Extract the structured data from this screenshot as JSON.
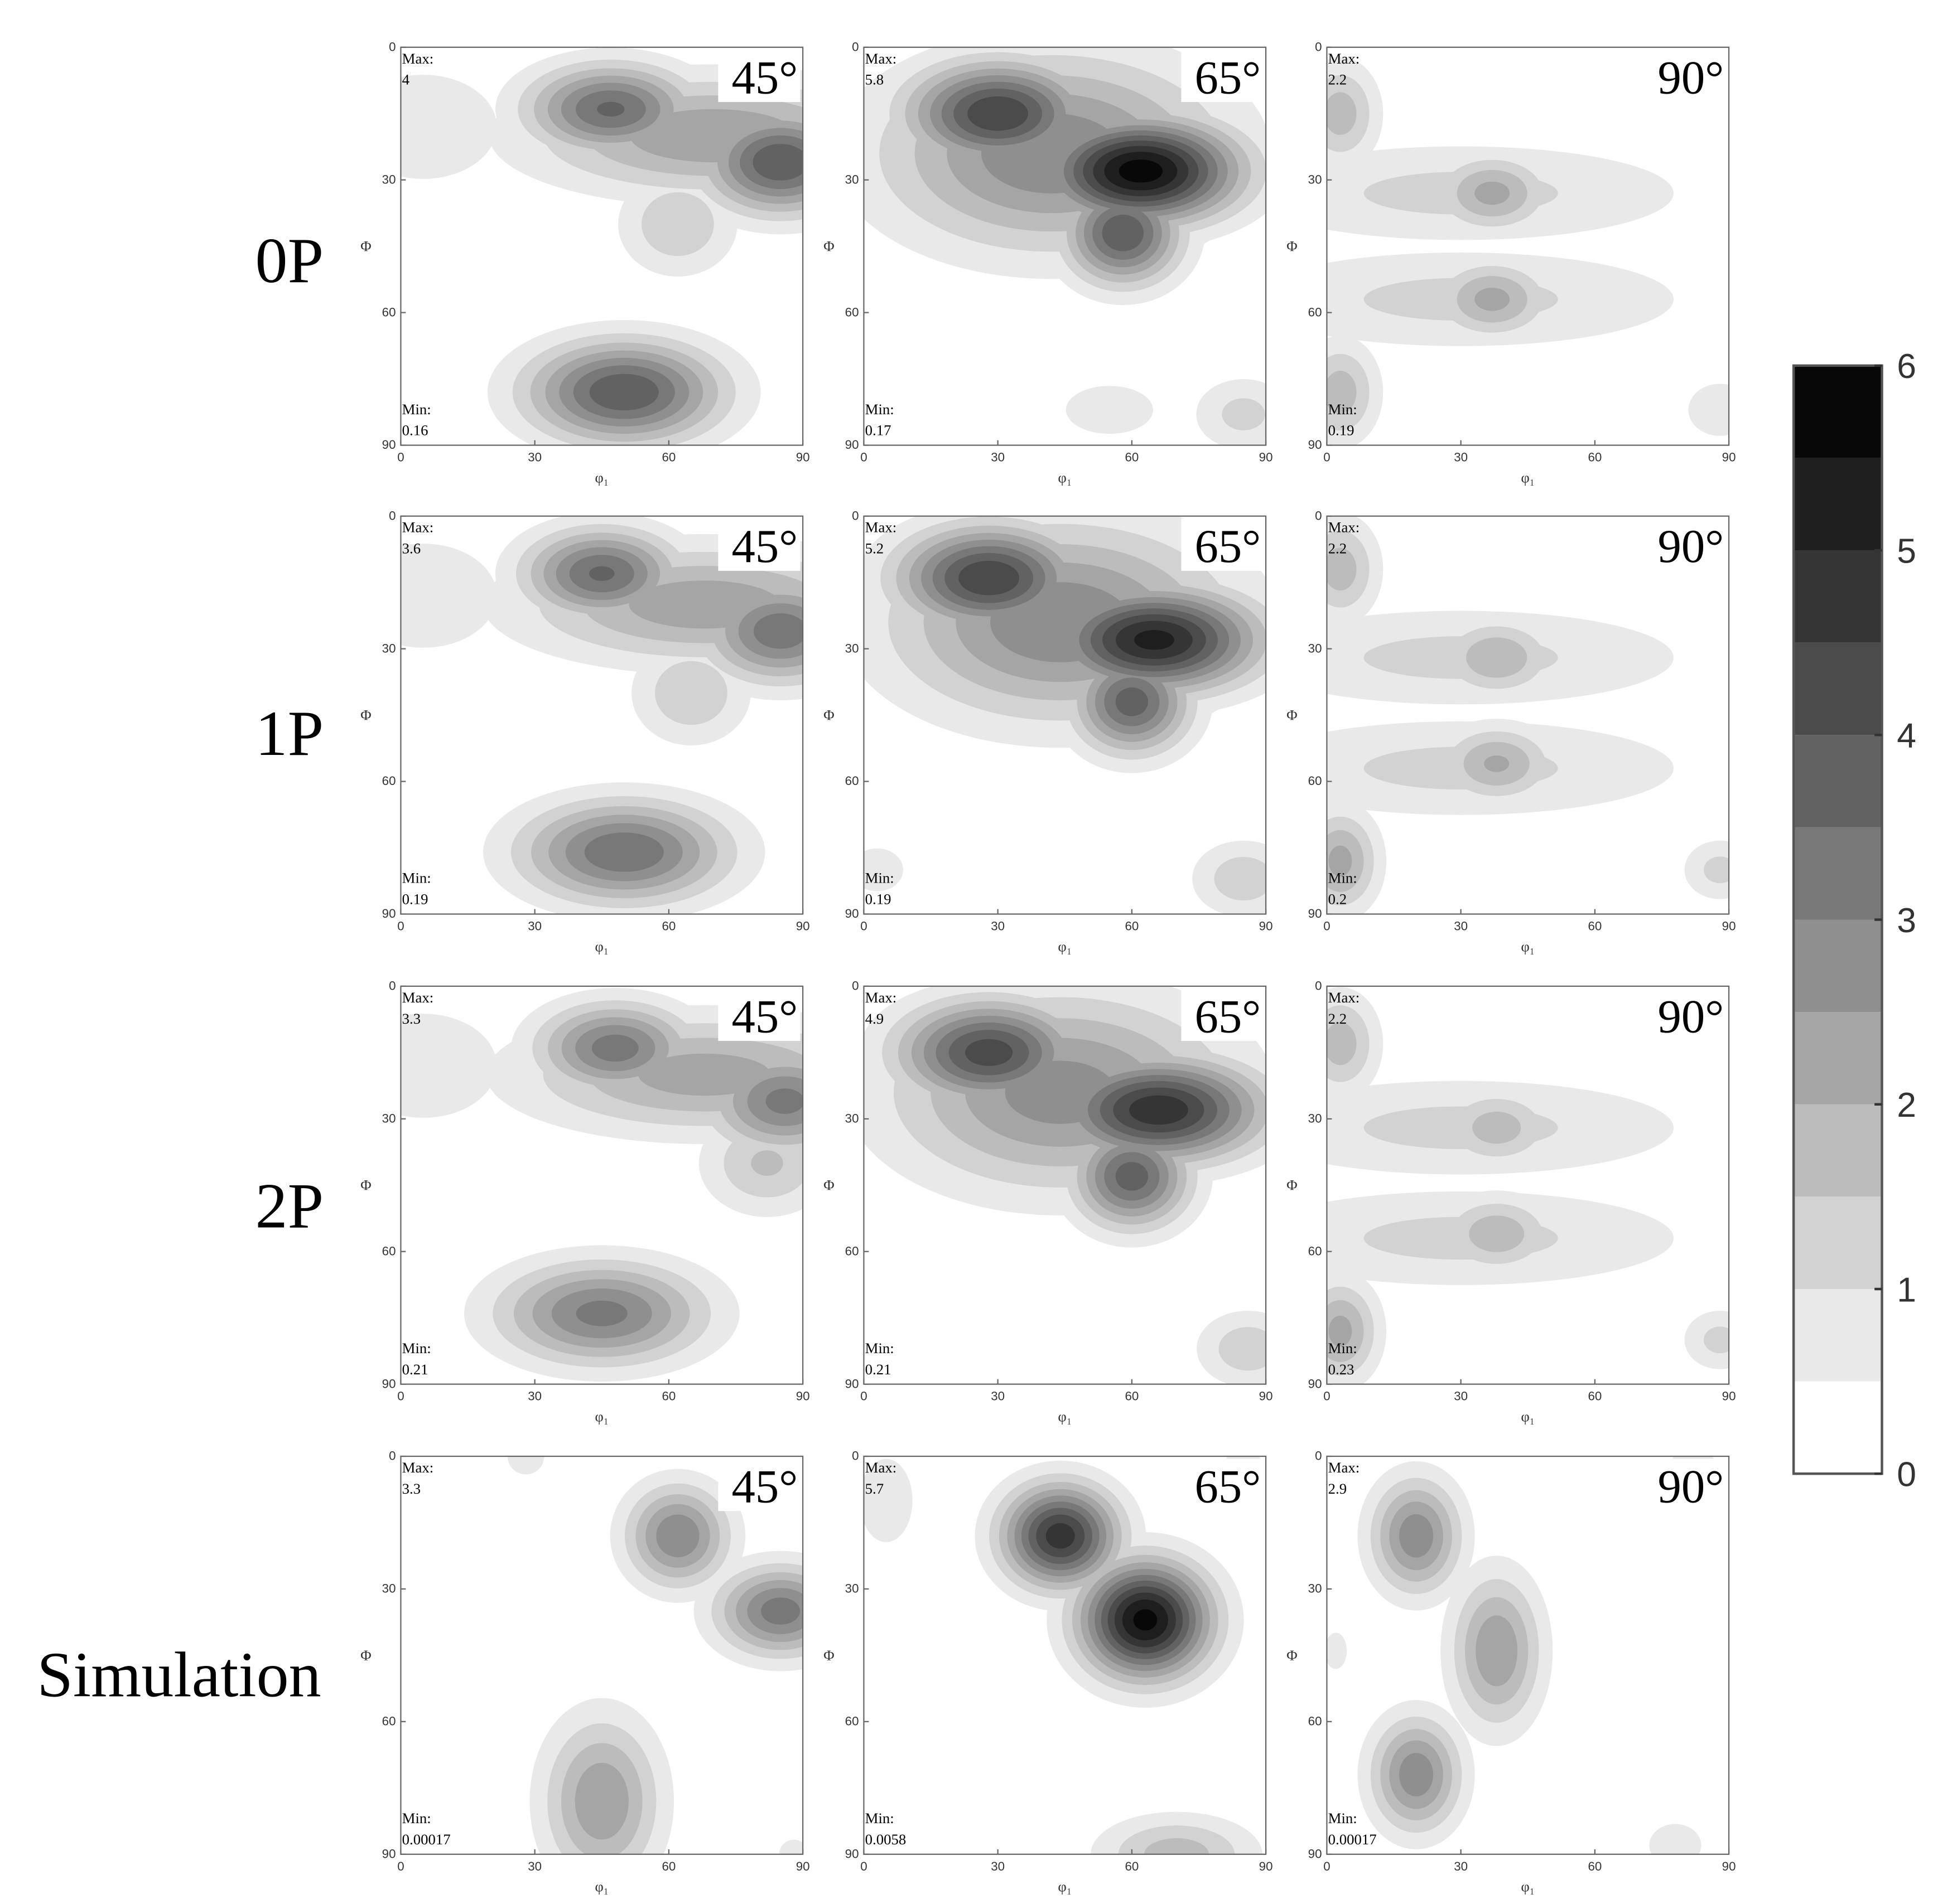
{
  "row_labels": [
    "0P",
    "1P",
    "2P",
    "Simulation"
  ],
  "colorbar": {
    "lim": [
      0,
      6
    ],
    "ticks": [
      0,
      1,
      2,
      3,
      4,
      5,
      6
    ],
    "levels": [
      0,
      0.5,
      1,
      1.5,
      2,
      2.5,
      3,
      3.5,
      4,
      4.5,
      5,
      5.5,
      6
    ]
  },
  "chart_data": [
    {
      "type": "contour",
      "title": "45°",
      "max_label": "Max:",
      "max": 4,
      "min_label": "Min:",
      "min": 0.16,
      "xlabel": "φ₁",
      "ylabel": "Φ",
      "xlim": [
        0,
        90
      ],
      "ylim": [
        0,
        90
      ],
      "xticks": [
        0,
        30,
        60,
        90
      ],
      "yticks": [
        0,
        30,
        60,
        90
      ],
      "peaks": [
        {
          "phi1": 70,
          "Phi": 20,
          "value": 2.5,
          "sx": 28,
          "sy": 9
        },
        {
          "phi1": 47,
          "Phi": 14,
          "value": 3.6,
          "sx": 13,
          "sy": 7
        },
        {
          "phi1": 85,
          "Phi": 26,
          "value": 4,
          "sx": 12,
          "sy": 8
        },
        {
          "phi1": 62,
          "Phi": 40,
          "value": 1.5,
          "sx": 9,
          "sy": 8
        },
        {
          "phi1": 5,
          "Phi": 18,
          "value": 1,
          "sx": 14,
          "sy": 10
        },
        {
          "phi1": 50,
          "Phi": 78,
          "value": 4,
          "sx": 15,
          "sy": 8
        }
      ]
    },
    {
      "type": "contour",
      "title": "65°",
      "max_label": "Max:",
      "max": 5.8,
      "min_label": "Min:",
      "min": 0.17,
      "xlabel": "φ₁",
      "ylabel": "Φ",
      "xlim": [
        0,
        90
      ],
      "ylim": [
        0,
        90
      ],
      "xticks": [
        0,
        30,
        60,
        90
      ],
      "yticks": [
        0,
        30,
        60,
        90
      ],
      "peaks": [
        {
          "phi1": 42,
          "Phi": 24,
          "value": 3,
          "sx": 26,
          "sy": 15
        },
        {
          "phi1": 30,
          "Phi": 15,
          "value": 4.5,
          "sx": 14,
          "sy": 8
        },
        {
          "phi1": 62,
          "Phi": 28,
          "value": 5.8,
          "sx": 15,
          "sy": 8
        },
        {
          "phi1": 58,
          "Phi": 42,
          "value": 4,
          "sx": 9,
          "sy": 8
        },
        {
          "phi1": 85,
          "Phi": 83,
          "value": 1.2,
          "sx": 8,
          "sy": 6
        },
        {
          "phi1": 55,
          "Phi": 82,
          "value": 0.9,
          "sx": 9,
          "sy": 5
        }
      ]
    },
    {
      "type": "contour",
      "title": "90°",
      "max_label": "Max:",
      "max": 2.2,
      "min_label": "Min:",
      "min": 0.19,
      "xlabel": "φ₁",
      "ylabel": "Φ",
      "xlim": [
        0,
        90
      ],
      "ylim": [
        0,
        90
      ],
      "xticks": [
        0,
        30,
        60,
        90
      ],
      "yticks": [
        0,
        30,
        60,
        90
      ],
      "peaks": [
        {
          "phi1": 30,
          "Phi": 33,
          "value": 1.2,
          "sx": 36,
          "sy": 8
        },
        {
          "phi1": 30,
          "Phi": 57,
          "value": 1.2,
          "sx": 36,
          "sy": 8
        },
        {
          "phi1": 3,
          "Phi": 15,
          "value": 1.8,
          "sx": 6,
          "sy": 8
        },
        {
          "phi1": 37,
          "Phi": 33,
          "value": 2.2,
          "sx": 9,
          "sy": 6
        },
        {
          "phi1": 37,
          "Phi": 57,
          "value": 2.2,
          "sx": 9,
          "sy": 6
        },
        {
          "phi1": 3,
          "Phi": 78,
          "value": 1.8,
          "sx": 6,
          "sy": 8
        },
        {
          "phi1": 88,
          "Phi": 82,
          "value": 1,
          "sx": 6,
          "sy": 5
        }
      ]
    },
    {
      "type": "contour",
      "title": "45°",
      "max_label": "Max:",
      "max": 3.6,
      "min_label": "Min:",
      "min": 0.19,
      "xlabel": "φ₁",
      "ylabel": "Φ",
      "xlim": [
        0,
        90
      ],
      "ylim": [
        0,
        90
      ],
      "xticks": [
        0,
        30,
        60,
        90
      ],
      "yticks": [
        0,
        30,
        60,
        90
      ],
      "peaks": [
        {
          "phi1": 68,
          "Phi": 20,
          "value": 2.4,
          "sx": 28,
          "sy": 9
        },
        {
          "phi1": 45,
          "Phi": 13,
          "value": 3.6,
          "sx": 12,
          "sy": 7
        },
        {
          "phi1": 85,
          "Phi": 26,
          "value": 3.4,
          "sx": 12,
          "sy": 8
        },
        {
          "phi1": 65,
          "Phi": 40,
          "value": 1.5,
          "sx": 9,
          "sy": 8
        },
        {
          "phi1": 5,
          "Phi": 18,
          "value": 1,
          "sx": 14,
          "sy": 10
        },
        {
          "phi1": 50,
          "Phi": 76,
          "value": 3.5,
          "sx": 16,
          "sy": 8
        }
      ]
    },
    {
      "type": "contour",
      "title": "65°",
      "max_label": "Max:",
      "max": 5.2,
      "min_label": "Min:",
      "min": 0.19,
      "xlabel": "φ₁",
      "ylabel": "Φ",
      "xlim": [
        0,
        90
      ],
      "ylim": [
        0,
        90
      ],
      "xticks": [
        0,
        30,
        60,
        90
      ],
      "yticks": [
        0,
        30,
        60,
        90
      ],
      "peaks": [
        {
          "phi1": 44,
          "Phi": 24,
          "value": 3,
          "sx": 26,
          "sy": 15
        },
        {
          "phi1": 28,
          "Phi": 14,
          "value": 4.5,
          "sx": 14,
          "sy": 8
        },
        {
          "phi1": 65,
          "Phi": 28,
          "value": 5.2,
          "sx": 16,
          "sy": 8
        },
        {
          "phi1": 60,
          "Phi": 42,
          "value": 3.8,
          "sx": 9,
          "sy": 8
        },
        {
          "phi1": 85,
          "Phi": 82,
          "value": 1.4,
          "sx": 8,
          "sy": 6
        },
        {
          "phi1": 3,
          "Phi": 80,
          "value": 0.8,
          "sx": 6,
          "sy": 5
        }
      ]
    },
    {
      "type": "contour",
      "title": "90°",
      "max_label": "Max:",
      "max": 2.2,
      "min_label": "Min:",
      "min": 0.2,
      "xlabel": "φ₁",
      "ylabel": "Φ",
      "xlim": [
        0,
        90
      ],
      "ylim": [
        0,
        90
      ],
      "xticks": [
        0,
        30,
        60,
        90
      ],
      "yticks": [
        0,
        30,
        60,
        90
      ],
      "peaks": [
        {
          "phi1": 30,
          "Phi": 32,
          "value": 1.2,
          "sx": 36,
          "sy": 8
        },
        {
          "phi1": 30,
          "Phi": 57,
          "value": 1.2,
          "sx": 36,
          "sy": 8
        },
        {
          "phi1": 3,
          "Phi": 12,
          "value": 1.8,
          "sx": 6,
          "sy": 8
        },
        {
          "phi1": 38,
          "Phi": 32,
          "value": 2,
          "sx": 9,
          "sy": 6
        },
        {
          "phi1": 38,
          "Phi": 56,
          "value": 2.1,
          "sx": 9,
          "sy": 6
        },
        {
          "phi1": 3,
          "Phi": 78,
          "value": 2.2,
          "sx": 6,
          "sy": 8
        },
        {
          "phi1": 88,
          "Phi": 80,
          "value": 1.2,
          "sx": 6,
          "sy": 5
        }
      ]
    },
    {
      "type": "contour",
      "title": "45°",
      "max_label": "Max:",
      "max": 3.3,
      "min_label": "Min:",
      "min": 0.21,
      "xlabel": "φ₁",
      "ylabel": "Φ",
      "xlim": [
        0,
        90
      ],
      "ylim": [
        0,
        90
      ],
      "xticks": [
        0,
        30,
        60,
        90
      ],
      "yticks": [
        0,
        30,
        60,
        90
      ],
      "peaks": [
        {
          "phi1": 68,
          "Phi": 20,
          "value": 2.3,
          "sx": 28,
          "sy": 9
        },
        {
          "phi1": 48,
          "Phi": 14,
          "value": 3.3,
          "sx": 12,
          "sy": 7
        },
        {
          "phi1": 86,
          "Phi": 26,
          "value": 3.2,
          "sx": 12,
          "sy": 8
        },
        {
          "phi1": 82,
          "Phi": 40,
          "value": 1.6,
          "sx": 10,
          "sy": 8
        },
        {
          "phi1": 5,
          "Phi": 18,
          "value": 1,
          "sx": 14,
          "sy": 10
        },
        {
          "phi1": 45,
          "Phi": 74,
          "value": 3.2,
          "sx": 16,
          "sy": 8
        }
      ]
    },
    {
      "type": "contour",
      "title": "65°",
      "max_label": "Max:",
      "max": 4.9,
      "min_label": "Min:",
      "min": 0.21,
      "xlabel": "φ₁",
      "ylabel": "Φ",
      "xlim": [
        0,
        90
      ],
      "ylim": [
        0,
        90
      ],
      "xticks": [
        0,
        30,
        60,
        90
      ],
      "yticks": [
        0,
        30,
        60,
        90
      ],
      "peaks": [
        {
          "phi1": 44,
          "Phi": 24,
          "value": 2.8,
          "sx": 26,
          "sy": 15
        },
        {
          "phi1": 28,
          "Phi": 15,
          "value": 4.3,
          "sx": 14,
          "sy": 8
        },
        {
          "phi1": 66,
          "Phi": 28,
          "value": 4.9,
          "sx": 16,
          "sy": 8
        },
        {
          "phi1": 60,
          "Phi": 43,
          "value": 3.8,
          "sx": 9,
          "sy": 8
        },
        {
          "phi1": 86,
          "Phi": 82,
          "value": 1.4,
          "sx": 8,
          "sy": 6
        }
      ]
    },
    {
      "type": "contour",
      "title": "90°",
      "max_label": "Max:",
      "max": 2.2,
      "min_label": "Min:",
      "min": 0.23,
      "xlabel": "φ₁",
      "ylabel": "Φ",
      "xlim": [
        0,
        90
      ],
      "ylim": [
        0,
        90
      ],
      "xticks": [
        0,
        30,
        60,
        90
      ],
      "yticks": [
        0,
        30,
        60,
        90
      ],
      "peaks": [
        {
          "phi1": 30,
          "Phi": 32,
          "value": 1.2,
          "sx": 36,
          "sy": 8
        },
        {
          "phi1": 30,
          "Phi": 57,
          "value": 1.2,
          "sx": 36,
          "sy": 8
        },
        {
          "phi1": 3,
          "Phi": 13,
          "value": 1.8,
          "sx": 6,
          "sy": 8
        },
        {
          "phi1": 38,
          "Phi": 32,
          "value": 1.8,
          "sx": 9,
          "sy": 6
        },
        {
          "phi1": 38,
          "Phi": 56,
          "value": 1.9,
          "sx": 9,
          "sy": 6
        },
        {
          "phi1": 3,
          "Phi": 78,
          "value": 2.2,
          "sx": 6,
          "sy": 8
        },
        {
          "phi1": 88,
          "Phi": 80,
          "value": 1.2,
          "sx": 6,
          "sy": 5
        }
      ]
    },
    {
      "type": "contour",
      "title": "45°",
      "max_label": "Max:",
      "max": 3.3,
      "min_label": "Min:",
      "min": 0.00017,
      "xlabel": "φ₁",
      "ylabel": "Φ",
      "xlim": [
        0,
        90
      ],
      "ylim": [
        0,
        90
      ],
      "xticks": [
        0,
        30,
        60,
        90
      ],
      "yticks": [
        0,
        30,
        60,
        90
      ],
      "peaks": [
        {
          "phi1": 62,
          "Phi": 18,
          "value": 3,
          "sx": 8,
          "sy": 8
        },
        {
          "phi1": 85,
          "Phi": 35,
          "value": 3.3,
          "sx": 10,
          "sy": 7
        },
        {
          "phi1": 45,
          "Phi": 78,
          "value": 2.5,
          "sx": 9,
          "sy": 13
        },
        {
          "phi1": 28,
          "Phi": 0,
          "value": 0.7,
          "sx": 5,
          "sy": 5
        },
        {
          "phi1": 88,
          "Phi": 90,
          "value": 0.7,
          "sx": 4,
          "sy": 4
        }
      ]
    },
    {
      "type": "contour",
      "title": "65°",
      "max_label": "Max:",
      "max": 5.7,
      "min_label": "Min:",
      "min": 0.0058,
      "xlabel": "φ₁",
      "ylabel": "Φ",
      "xlim": [
        0,
        90
      ],
      "ylim": [
        0,
        90
      ],
      "xticks": [
        0,
        30,
        60,
        90
      ],
      "yticks": [
        0,
        30,
        60,
        90
      ],
      "peaks": [
        {
          "phi1": 44,
          "Phi": 18,
          "value": 4.8,
          "sx": 9,
          "sy": 8
        },
        {
          "phi1": 63,
          "Phi": 37,
          "value": 5.7,
          "sx": 10,
          "sy": 9
        },
        {
          "phi1": 70,
          "Phi": 90,
          "value": 1.8,
          "sx": 12,
          "sy": 6
        },
        {
          "phi1": 5,
          "Phi": 10,
          "value": 1,
          "sx": 5,
          "sy": 8
        },
        {
          "phi1": 85,
          "Phi": 2,
          "value": 0.7,
          "sx": 5,
          "sy": 5
        }
      ]
    },
    {
      "type": "contour",
      "title": "90°",
      "max_label": "Max:",
      "max": 2.9,
      "min_label": "Min:",
      "min": 0.00017,
      "xlabel": "φ₁",
      "ylabel": "Φ",
      "xlim": [
        0,
        90
      ],
      "ylim": [
        0,
        90
      ],
      "xticks": [
        0,
        30,
        60,
        90
      ],
      "yticks": [
        0,
        30,
        60,
        90
      ],
      "peaks": [
        {
          "phi1": 20,
          "Phi": 18,
          "value": 2.9,
          "sx": 7,
          "sy": 9
        },
        {
          "phi1": 38,
          "Phi": 44,
          "value": 2.5,
          "sx": 7,
          "sy": 12
        },
        {
          "phi1": 20,
          "Phi": 72,
          "value": 2.9,
          "sx": 7,
          "sy": 9
        },
        {
          "phi1": 78,
          "Phi": 88,
          "value": 0.8,
          "sx": 6,
          "sy": 5
        },
        {
          "phi1": 82,
          "Phi": 2,
          "value": 0.7,
          "sx": 6,
          "sy": 5
        },
        {
          "phi1": 2,
          "Phi": 44,
          "value": 0.7,
          "sx": 3,
          "sy": 5
        }
      ]
    }
  ]
}
